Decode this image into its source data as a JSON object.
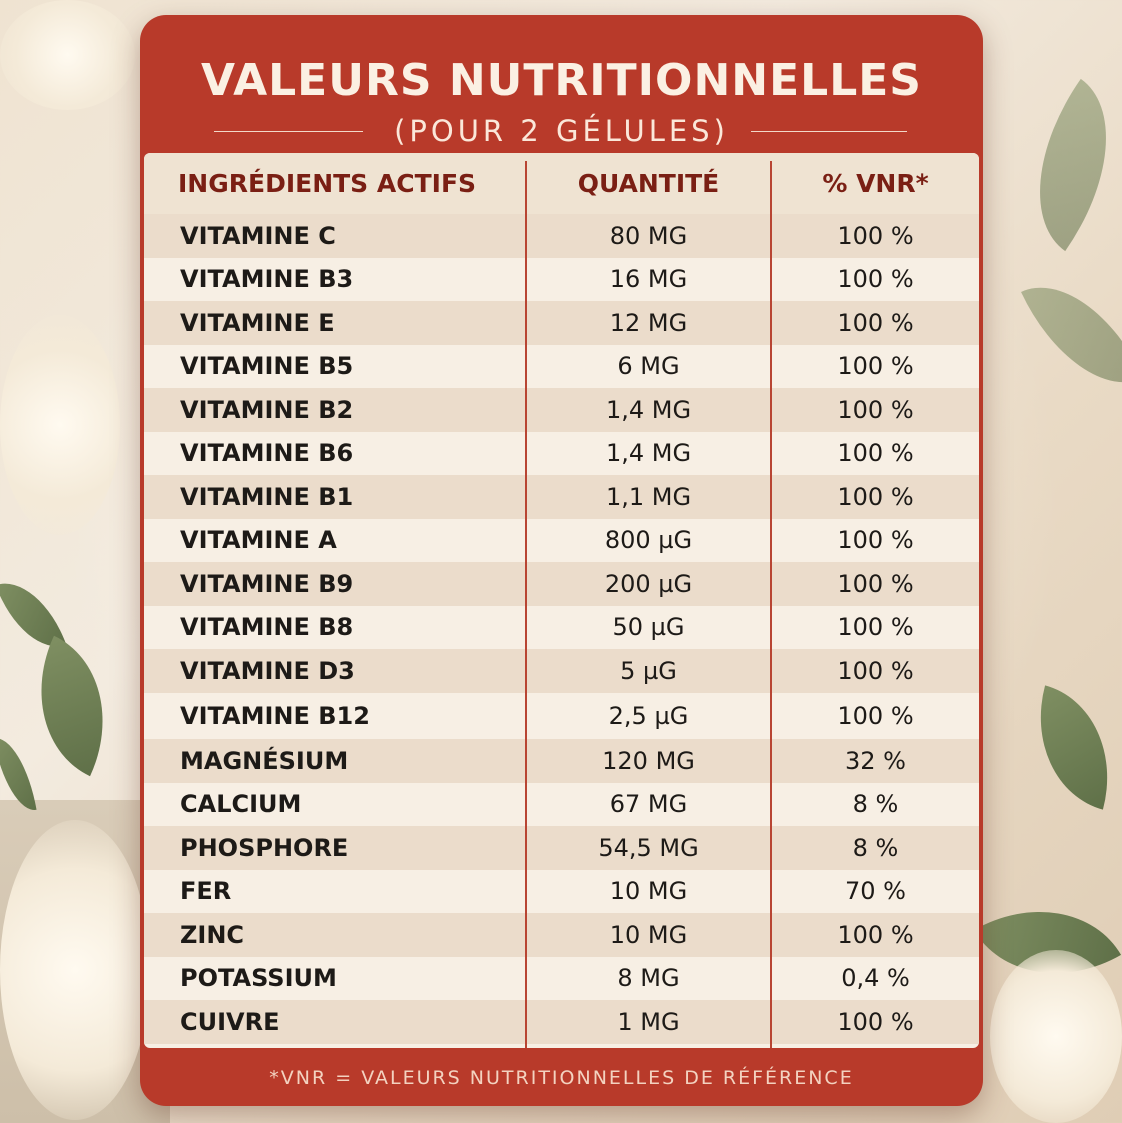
{
  "card": {
    "title": "VALEURS NUTRITIONNELLES",
    "subtitle": "(POUR 2 GÉLULES)"
  },
  "table": {
    "headers": [
      "INGRÉDIENTS ACTIFS",
      "QUANTITÉ",
      "% VNR*"
    ],
    "rows": [
      {
        "name": "VITAMINE C",
        "qty": "80 MG",
        "pct": "100 %"
      },
      {
        "name": "VITAMINE B3",
        "qty": "16 MG",
        "pct": "100 %"
      },
      {
        "name": "VITAMINE E",
        "qty": "12 MG",
        "pct": "100 %"
      },
      {
        "name": "VITAMINE B5",
        "qty": "6 MG",
        "pct": "100 %"
      },
      {
        "name": "VITAMINE B2",
        "qty": "1,4 MG",
        "pct": "100 %"
      },
      {
        "name": "VITAMINE B6",
        "qty": "1,4 MG",
        "pct": "100 %"
      },
      {
        "name": "VITAMINE B1",
        "qty": "1,1 MG",
        "pct": "100 %"
      },
      {
        "name": "VITAMINE A",
        "qty": "800 µG",
        "pct": "100 %"
      },
      {
        "name": "VITAMINE B9",
        "qty": "200 µG",
        "pct": "100 %"
      },
      {
        "name": "VITAMINE B8",
        "qty": "50 µG",
        "pct": "100 %"
      },
      {
        "name": "VITAMINE D3",
        "qty": "5 µG",
        "pct": "100 %"
      },
      {
        "name": "VITAMINE B12",
        "qty": "2,5 µG",
        "pct": "100 %"
      },
      {
        "name": "MAGNÉSIUM",
        "qty": "120 MG",
        "pct": "32 %"
      },
      {
        "name": "CALCIUM",
        "qty": "67 MG",
        "pct": "8 %"
      },
      {
        "name": "PHOSPHORE",
        "qty": "54,5 MG",
        "pct": "8 %"
      },
      {
        "name": "FER",
        "qty": "10 MG",
        "pct": "70 %"
      },
      {
        "name": "ZINC",
        "qty": "10 MG",
        "pct": "100 %"
      },
      {
        "name": "POTASSIUM",
        "qty": "8 MG",
        "pct": "0,4 %"
      },
      {
        "name": "CUIVRE",
        "qty": "1 MG",
        "pct": "100 %"
      }
    ]
  },
  "footnote": "*VNR = VALEURS NUTRITIONNELLES DE RÉFÉRENCE",
  "colors": {
    "card_red": "#b83a2a",
    "header_text": "#7a1f14",
    "row_light": "#f7efe4",
    "row_dark": "#ebdccb"
  }
}
